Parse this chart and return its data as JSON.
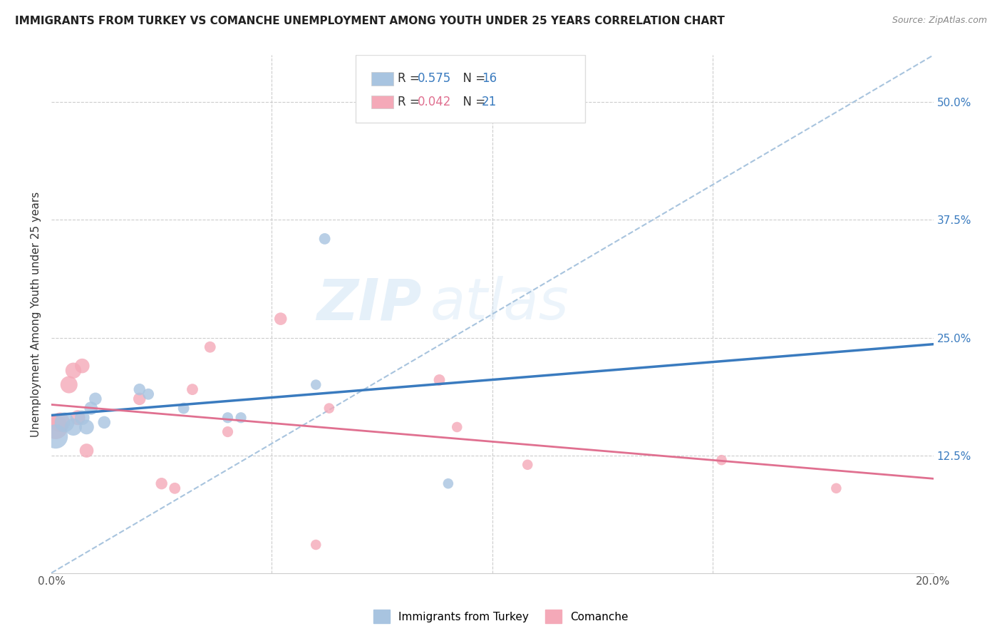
{
  "title": "IMMIGRANTS FROM TURKEY VS COMANCHE UNEMPLOYMENT AMONG YOUTH UNDER 25 YEARS CORRELATION CHART",
  "source": "Source: ZipAtlas.com",
  "ylabel": "Unemployment Among Youth under 25 years",
  "xlim": [
    0.0,
    0.2
  ],
  "ylim": [
    0.0,
    0.55
  ],
  "turkey_R": 0.575,
  "turkey_N": 16,
  "comanche_R": 0.042,
  "comanche_N": 21,
  "turkey_color": "#a8c4e0",
  "comanche_color": "#f4a9b8",
  "turkey_line_color": "#3a7bbf",
  "comanche_line_color": "#e07090",
  "dashed_line_color": "#a8c4de",
  "watermark_zip": "ZIP",
  "watermark_atlas": "atlas",
  "turkey_x": [
    0.001,
    0.003,
    0.005,
    0.007,
    0.008,
    0.009,
    0.01,
    0.012,
    0.02,
    0.022,
    0.03,
    0.04,
    0.043,
    0.06,
    0.062,
    0.09
  ],
  "turkey_y": [
    0.145,
    0.16,
    0.155,
    0.165,
    0.155,
    0.175,
    0.185,
    0.16,
    0.195,
    0.19,
    0.175,
    0.165,
    0.165,
    0.2,
    0.355,
    0.095
  ],
  "comanche_x": [
    0.001,
    0.002,
    0.004,
    0.005,
    0.006,
    0.007,
    0.008,
    0.02,
    0.025,
    0.028,
    0.032,
    0.036,
    0.04,
    0.052,
    0.06,
    0.063,
    0.088,
    0.092,
    0.108,
    0.152,
    0.178
  ],
  "comanche_y": [
    0.155,
    0.16,
    0.2,
    0.215,
    0.165,
    0.22,
    0.13,
    0.185,
    0.095,
    0.09,
    0.195,
    0.24,
    0.15,
    0.27,
    0.03,
    0.175,
    0.205,
    0.155,
    0.115,
    0.12,
    0.09
  ],
  "turkey_sizes": [
    600,
    400,
    300,
    220,
    220,
    180,
    160,
    160,
    140,
    130,
    130,
    120,
    120,
    110,
    130,
    110
  ],
  "comanche_sizes": [
    600,
    400,
    300,
    260,
    230,
    220,
    200,
    160,
    140,
    130,
    130,
    130,
    120,
    160,
    110,
    110,
    130,
    110,
    110,
    110,
    110
  ],
  "legend_label_turkey": "Immigrants from Turkey",
  "legend_label_comanche": "Comanche"
}
